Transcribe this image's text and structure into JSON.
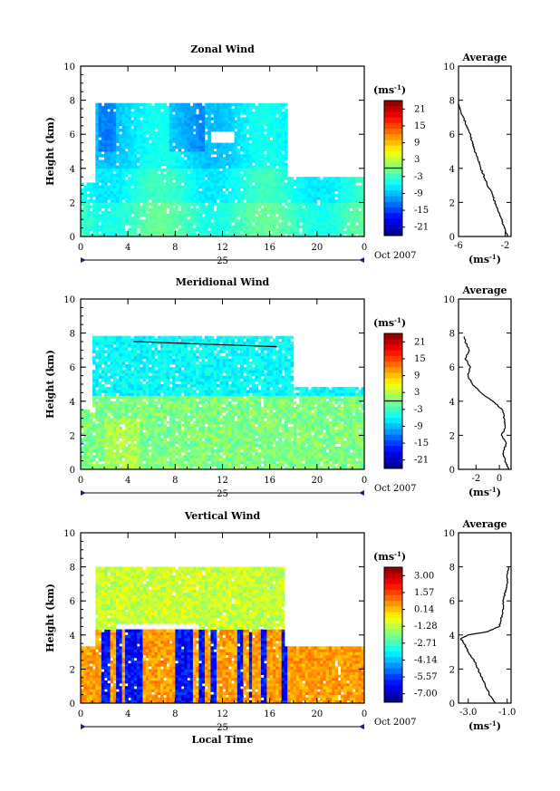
{
  "chart_data": [
    {
      "type": "heatmap",
      "title": "Zonal Wind",
      "ylabel": "Height (km)",
      "xlim": [
        0,
        24
      ],
      "ylim": [
        0,
        10
      ],
      "x_ticks": [
        "0",
        "4",
        "8",
        "12",
        "16",
        "20",
        "0"
      ],
      "y_ticks": [
        "0",
        "2",
        "4",
        "6",
        "8",
        "10"
      ],
      "date_label": "25",
      "date_suffix": "Oct 2007",
      "colorbar": {
        "unit": "(ms",
        "unit_exp": "-1",
        "unit_close": ")",
        "ticks": [
          "21",
          "15",
          "9",
          "3",
          "-3",
          "-9",
          "-15",
          "-21"
        ],
        "range": [
          -24,
          24
        ]
      },
      "profile": {
        "title": "Average",
        "xlim": [
          -6,
          -1.5
        ],
        "x_ticks": [
          "-6",
          "-2"
        ],
        "x_tick_values": [
          -6,
          -2
        ],
        "y_ticks": [
          "0",
          "2",
          "4",
          "6",
          "8",
          "10"
        ],
        "xlabel": "(ms",
        "xlabel_exp": "-1",
        "xlabel_close": ")",
        "heights": [
          0,
          0.5,
          1,
          1.5,
          2,
          2.5,
          3,
          3.5,
          4,
          4.5,
          5,
          5.5,
          6,
          6.5,
          7,
          7.5,
          7.8
        ],
        "values": [
          -1.8,
          -2.1,
          -2.3,
          -2.6,
          -2.9,
          -3.1,
          -3.5,
          -3.8,
          -4.1,
          -4.3,
          -4.6,
          -4.8,
          -5.0,
          -5.3,
          -5.6,
          -5.9,
          -6.0
        ]
      }
    },
    {
      "type": "heatmap",
      "title": "Meridional Wind",
      "ylabel": "Height (km)",
      "xlim": [
        0,
        24
      ],
      "ylim": [
        0,
        10
      ],
      "x_ticks": [
        "0",
        "4",
        "8",
        "12",
        "16",
        "20",
        "0"
      ],
      "y_ticks": [
        "0",
        "2",
        "4",
        "6",
        "8",
        "10"
      ],
      "date_label": "25",
      "date_suffix": "Oct 2007",
      "colorbar": {
        "unit": "(ms",
        "unit_exp": "-1",
        "unit_close": ")",
        "ticks": [
          "21",
          "15",
          "9",
          "3",
          "-3",
          "-9",
          "-15",
          "-21"
        ],
        "range": [
          -24,
          24
        ]
      },
      "profile": {
        "title": "Average",
        "xlim": [
          -3.5,
          1
        ],
        "x_ticks": [
          "-2",
          "0"
        ],
        "x_tick_values": [
          -2,
          0
        ],
        "y_ticks": [
          "0",
          "2",
          "4",
          "6",
          "8",
          "10"
        ],
        "xlabel": "(ms",
        "xlabel_exp": "-1",
        "xlabel_close": ")",
        "heights": [
          0,
          0.5,
          1,
          1.5,
          2,
          2.5,
          3,
          3.5,
          4,
          4.5,
          5,
          5.5,
          6,
          6.5,
          7,
          7.5,
          7.8
        ],
        "values": [
          0.8,
          0.5,
          0.3,
          0.6,
          0.2,
          0.5,
          0.4,
          0.3,
          -0.6,
          -1.6,
          -2.3,
          -2.7,
          -2.5,
          -2.9,
          -2.6,
          -2.9,
          -3.0
        ]
      }
    },
    {
      "type": "heatmap",
      "title": "Vertical Wind",
      "ylabel": "Height (km)",
      "xlabel": "Local Time",
      "xlim": [
        0,
        24
      ],
      "ylim": [
        0,
        10
      ],
      "x_ticks": [
        "0",
        "4",
        "8",
        "12",
        "16",
        "20",
        "0"
      ],
      "y_ticks": [
        "0",
        "2",
        "4",
        "6",
        "8",
        "10"
      ],
      "date_label": "25",
      "date_suffix": "Oct 2007",
      "colorbar": {
        "unit": "(ms",
        "unit_exp": "-1",
        "unit_close": ")",
        "ticks": [
          "3.00",
          "1.57",
          "0.14",
          "-1.28",
          "-2.71",
          "-4.14",
          "-5.57",
          "-7.00"
        ],
        "range": [
          -7.7,
          3.7
        ]
      },
      "profile": {
        "title": "Average",
        "xlim": [
          -3.5,
          -0.8
        ],
        "x_ticks": [
          "-3.0",
          "-1.0"
        ],
        "x_tick_values": [
          -3.0,
          -1.0
        ],
        "y_ticks": [
          "0",
          "2",
          "4",
          "6",
          "8",
          "10"
        ],
        "xlabel": "(ms",
        "xlabel_exp": "-1",
        "xlabel_close": ")",
        "heights": [
          0,
          0.5,
          1,
          1.5,
          2,
          2.5,
          3,
          3.5,
          3.8,
          4.0,
          4.2,
          4.5,
          5,
          5.5,
          6,
          6.5,
          7,
          7.5,
          8
        ],
        "values": [
          -1.6,
          -1.9,
          -2.1,
          -2.3,
          -2.5,
          -2.7,
          -3.0,
          -3.2,
          -3.4,
          -3.0,
          -2.0,
          -1.4,
          -1.3,
          -1.2,
          -1.2,
          -1.1,
          -1.0,
          -1.0,
          -0.9
        ]
      }
    }
  ]
}
